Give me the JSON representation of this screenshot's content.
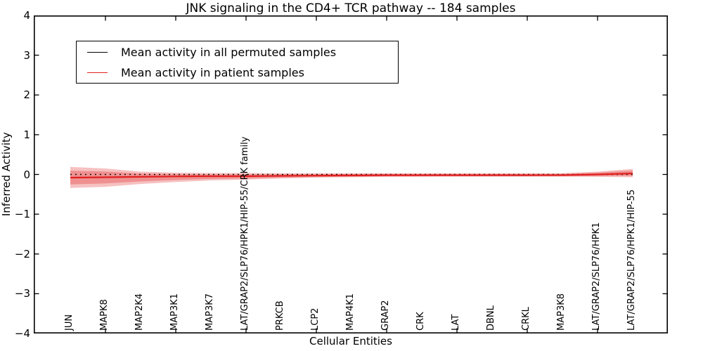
{
  "window": {
    "background": "#ffffff"
  },
  "chart_data": {
    "type": "line",
    "title": "JNK signaling in the CD4+ TCR pathway -- 184 samples",
    "xlabel": "Cellular Entities",
    "ylabel": "Inferred Activity",
    "ylim": [
      -4,
      4
    ],
    "yticks": [
      4,
      3,
      2,
      1,
      0,
      -1,
      -2,
      -3,
      -4
    ],
    "ytick_labels": [
      "4",
      "3",
      "2",
      "1",
      "0",
      "−1",
      "−2",
      "−3",
      "−4"
    ],
    "grid": false,
    "categories": [
      "JUN",
      "MAPK8",
      "MAP2K4",
      "MAP3K1",
      "MAP3K7",
      "LAT/GRAP2/SLP76/HPK1/HIP-55/CRK family",
      "PRKCB",
      "LCP2",
      "MAP4K1",
      "GRAP2",
      "CRK",
      "LAT",
      "DBNL",
      "CRKL",
      "MAP3K8",
      "LAT/GRAP2/SLP76/HPK1",
      "LAT/GRAP2/SLP76/HPK1/HIP-55"
    ],
    "series": [
      {
        "name": "Mean activity in all permuted samples",
        "color": "#000000",
        "style": "dotted",
        "width": 1.6,
        "values": [
          0,
          0,
          0,
          0,
          0,
          0,
          0,
          0,
          0,
          0,
          0,
          0,
          0,
          0,
          0,
          0,
          0
        ]
      },
      {
        "name": "Mean activity in patient samples",
        "color": "#e02020",
        "style": "solid",
        "width": 2.2,
        "values": [
          -0.08,
          -0.07,
          -0.06,
          -0.05,
          -0.045,
          -0.045,
          -0.035,
          -0.03,
          -0.025,
          -0.02,
          -0.02,
          -0.02,
          -0.02,
          -0.02,
          -0.018,
          0,
          0.027
        ]
      }
    ],
    "bands": [
      {
        "name": "patient-band-outer",
        "color": "#dd2222",
        "opacity": 0.28,
        "upper": [
          0.19,
          0.15,
          0.07,
          0.045,
          0.035,
          0.035,
          0.03,
          0.03,
          0.03,
          0.03,
          0.03,
          0.03,
          0.03,
          0.03,
          0.03,
          0.07,
          0.14
        ],
        "lower": [
          -0.34,
          -0.31,
          -0.24,
          -0.19,
          -0.15,
          -0.13,
          -0.1,
          -0.08,
          -0.07,
          -0.06,
          -0.06,
          -0.055,
          -0.055,
          -0.055,
          -0.055,
          -0.06,
          -0.07
        ]
      },
      {
        "name": "patient-band-inner",
        "color": "#dd2222",
        "opacity": 0.3,
        "upper": [
          0.095,
          0.073,
          0.025,
          0.012,
          0.007,
          0.007,
          0.007,
          0.009,
          0.011,
          0.013,
          0.012,
          0.012,
          0.012,
          0.012,
          0.012,
          0.046,
          0.1
        ],
        "lower": [
          -0.25,
          -0.226,
          -0.177,
          -0.14,
          -0.113,
          -0.1,
          -0.077,
          -0.063,
          -0.058,
          -0.046,
          -0.044,
          -0.043,
          -0.043,
          -0.043,
          -0.042,
          -0.039,
          -0.036
        ]
      }
    ],
    "legend": {
      "position": "upper left",
      "entries": [
        {
          "label": "Mean activity in all permuted samples",
          "color": "#000000"
        },
        {
          "label": "Mean activity in patient samples",
          "color": "#e02020"
        }
      ]
    }
  }
}
